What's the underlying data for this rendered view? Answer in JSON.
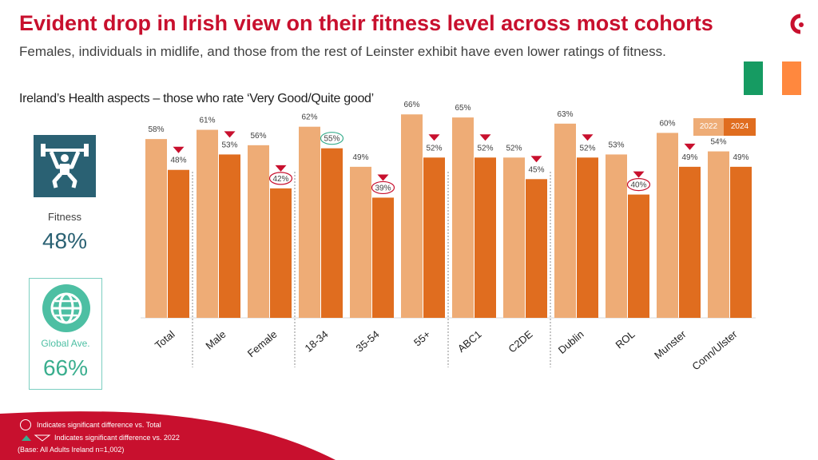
{
  "header": {
    "title": "Evident drop in Irish view on their fitness level across most cohorts",
    "subtitle": "Females, individuals in midlife, and those from the rest of Leinster exhibit have even lower ratings of fitness.",
    "section_title": "Ireland’s Health aspects – those who rate ‘Very Good/Quite good’"
  },
  "colors": {
    "brand": "#c8102e",
    "bar_2022": "#eeac76",
    "bar_2024": "#e06d1f",
    "teal": "#2a6173",
    "green": "#3aae8e"
  },
  "flag_colors": [
    "#169b62",
    "#ffffff",
    "#ff883e"
  ],
  "legend": {
    "year_2022": "2022",
    "year_2024": "2024"
  },
  "fitness": {
    "icon": "weightlifter-icon",
    "label": "Fitness",
    "value": "48%"
  },
  "global": {
    "icon": "globe-icon",
    "label": "Global Ave.",
    "value": "66%"
  },
  "footer": {
    "circle_note": "Indicates significant difference vs. Total",
    "arrow_note": "Indicates significant difference vs. 2022",
    "base_note": "(Base: All Adults Ireland  n=1,002)"
  },
  "chart_data": {
    "type": "bar",
    "title": "Ireland’s Health aspects – those who rate ‘Very Good/Quite good’",
    "ylim": [
      0,
      100
    ],
    "categories": [
      "Total",
      "Male",
      "Female",
      "18-34",
      "35-54",
      "55+",
      "ABC1",
      "C2DE",
      "Dublin",
      "ROL",
      "Munster",
      "Conn/Ulster"
    ],
    "groups": [
      [
        "Total"
      ],
      [
        "Male",
        "Female"
      ],
      [
        "18-34",
        "35-54",
        "55+"
      ],
      [
        "ABC1",
        "C2DE"
      ],
      [
        "Dublin",
        "ROL",
        "Munster",
        "Conn/Ulster"
      ]
    ],
    "series": [
      {
        "name": "2022",
        "values": [
          58,
          61,
          56,
          62,
          49,
          66,
          65,
          52,
          63,
          53,
          60,
          54
        ]
      },
      {
        "name": "2024",
        "values": [
          48,
          53,
          42,
          55,
          39,
          52,
          52,
          45,
          52,
          40,
          49,
          49
        ]
      }
    ],
    "sig_vs_total_2024": [
      false,
      false,
      true,
      true,
      true,
      false,
      false,
      false,
      false,
      true,
      false,
      false
    ],
    "sig_down_vs_2022": [
      true,
      true,
      true,
      false,
      true,
      true,
      true,
      true,
      true,
      true,
      true,
      false
    ]
  }
}
